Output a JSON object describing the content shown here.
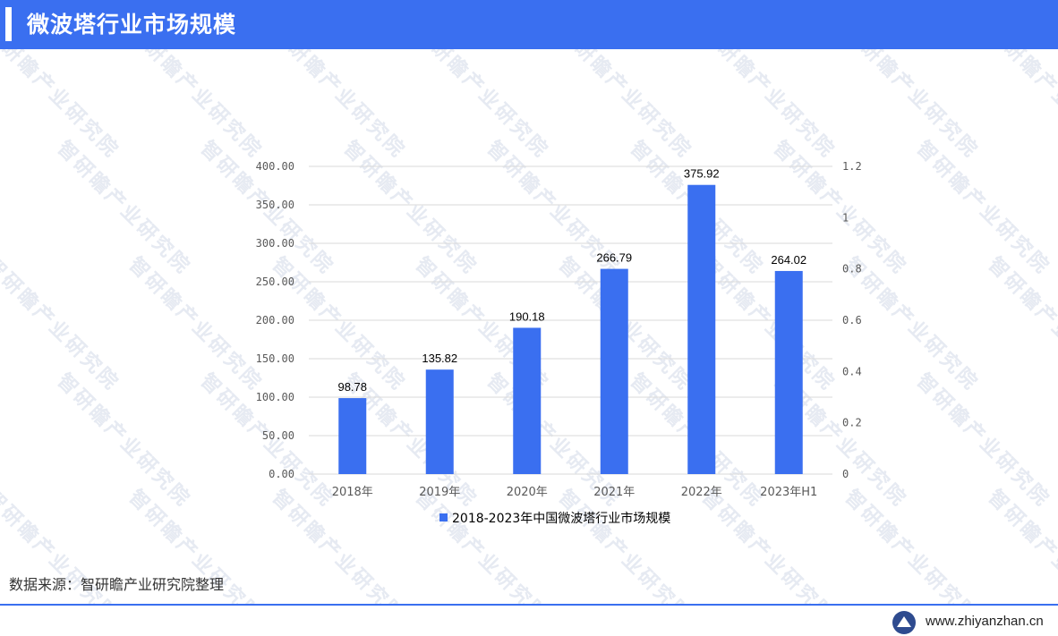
{
  "header": {
    "title": "微波塔行业市场规模"
  },
  "watermark": {
    "text": "智研瞻产业研究院"
  },
  "source": {
    "text": "数据来源：智研瞻产业研究院整理"
  },
  "footer": {
    "site": "www.zhiyanzhan.cn",
    "logo_icon": "zhiyanzhan-logo-icon"
  },
  "colors": {
    "accent": "#3a6ff0",
    "bar": "#3a6ff0"
  },
  "chart_data": {
    "type": "bar",
    "categories": [
      "2018年",
      "2019年",
      "2020年",
      "2021年",
      "2022年",
      "2023年H1"
    ],
    "series": [
      {
        "name": "2018-2023年中国微波塔行业市场规模",
        "values": [
          98.78,
          135.82,
          190.18,
          266.79,
          375.92,
          264.02
        ]
      }
    ],
    "data_labels": [
      "98.78",
      "135.82",
      "190.18",
      "266.79",
      "375.92",
      "264.02"
    ],
    "ylim": [
      0,
      400
    ],
    "y_ticks": [
      "0.00",
      "50.00",
      "100.00",
      "150.00",
      "200.00",
      "250.00",
      "300.00",
      "350.00",
      "400.00"
    ],
    "y2lim": [
      0,
      1.2
    ],
    "y2_ticks": [
      "0",
      "0.2",
      "0.4",
      "0.6",
      "0.8",
      "1",
      "1.2"
    ],
    "grid": true,
    "legend": "bottom-center"
  }
}
